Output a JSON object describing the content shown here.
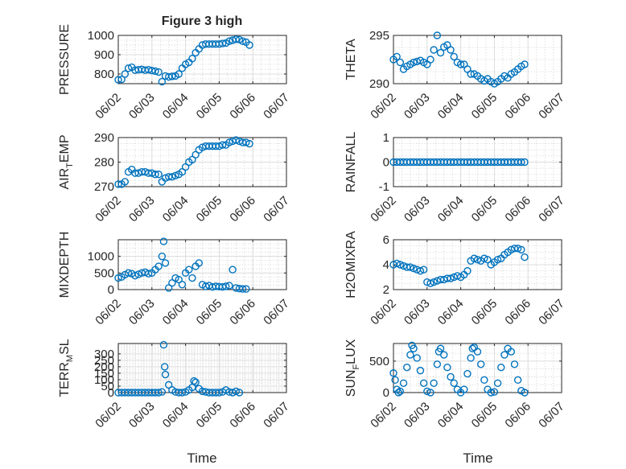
{
  "figure_title": "Figure 3 high",
  "colors": {
    "marker": "#0072BD",
    "axis": "#262626"
  },
  "x_ticks": [
    "06/02",
    "06/03",
    "06/04",
    "06/05",
    "06/06",
    "06/07"
  ],
  "xlabel": "Time",
  "chart_data": [
    {
      "type": "scatter",
      "ylabel": "PRESSURE",
      "title": "Figure 3 high",
      "ylim": [
        750,
        1000
      ],
      "yticks": [
        "800",
        "900",
        "1000"
      ],
      "ytick_values": [
        800,
        900,
        1000
      ],
      "xlim": [
        "06/02",
        "06/07"
      ],
      "x": [
        2.0,
        2.1,
        2.2,
        2.3,
        2.4,
        2.5,
        2.6,
        2.7,
        2.8,
        2.9,
        3.0,
        3.1,
        3.2,
        3.3,
        3.4,
        3.5,
        3.6,
        3.7,
        3.8,
        3.9,
        4.0,
        4.1,
        4.2,
        4.3,
        4.4,
        4.5,
        4.6,
        4.7,
        4.8,
        4.9,
        5.0,
        5.1,
        5.2,
        5.3,
        5.4,
        5.5,
        5.6,
        5.7,
        5.8,
        5.9
      ],
      "y": [
        770,
        772,
        800,
        830,
        835,
        820,
        822,
        824,
        820,
        822,
        818,
        815,
        810,
        760,
        790,
        785,
        788,
        790,
        800,
        830,
        850,
        860,
        880,
        910,
        930,
        950,
        955,
        955,
        955,
        955,
        955,
        958,
        960,
        970,
        975,
        980,
        978,
        970,
        965,
        950
      ]
    },
    {
      "type": "scatter",
      "ylabel": "THETA",
      "ylim": [
        290,
        295
      ],
      "yticks": [
        "290",
        "295"
      ],
      "ytick_values": [
        290,
        295
      ],
      "xlim": [
        "06/02",
        "06/07"
      ],
      "x": [
        2.0,
        2.1,
        2.2,
        2.3,
        2.4,
        2.5,
        2.6,
        2.7,
        2.8,
        2.9,
        3.0,
        3.1,
        3.2,
        3.3,
        3.4,
        3.5,
        3.6,
        3.7,
        3.8,
        3.9,
        4.0,
        4.1,
        4.2,
        4.3,
        4.4,
        4.5,
        4.6,
        4.7,
        4.8,
        4.9,
        5.0,
        5.1,
        5.2,
        5.3,
        5.4,
        5.5,
        5.6,
        5.7,
        5.8,
        5.9
      ],
      "y": [
        292.5,
        292.8,
        292.2,
        291.5,
        291.8,
        292.0,
        292.2,
        292.3,
        292.4,
        292.2,
        292.0,
        292.5,
        293.5,
        295.0,
        293.2,
        293.8,
        294.0,
        293.5,
        292.8,
        292.2,
        292.0,
        292.0,
        291.5,
        291.0,
        291.0,
        290.8,
        290.5,
        290.3,
        290.5,
        290.2,
        290.0,
        290.2,
        290.5,
        290.8,
        290.6,
        291.0,
        291.2,
        291.5,
        291.8,
        292.0
      ]
    },
    {
      "type": "scatter",
      "ylabel": "AIR_TEMP",
      "ylabel_parts": [
        "AIR",
        "T",
        "EMP"
      ],
      "ylim": [
        270,
        290
      ],
      "yticks": [
        "270",
        "280",
        "290"
      ],
      "ytick_values": [
        270,
        280,
        290
      ],
      "xlim": [
        "06/02",
        "06/07"
      ],
      "x": [
        2.0,
        2.1,
        2.2,
        2.3,
        2.4,
        2.5,
        2.6,
        2.7,
        2.8,
        2.9,
        3.0,
        3.1,
        3.2,
        3.3,
        3.4,
        3.5,
        3.6,
        3.7,
        3.8,
        3.9,
        4.0,
        4.1,
        4.2,
        4.3,
        4.4,
        4.5,
        4.6,
        4.7,
        4.8,
        4.9,
        5.0,
        5.1,
        5.2,
        5.3,
        5.4,
        5.5,
        5.6,
        5.7,
        5.8,
        5.9
      ],
      "y": [
        271,
        271,
        272,
        276,
        277,
        275.5,
        275.5,
        276,
        276,
        275.5,
        275.5,
        275,
        275,
        272,
        273.5,
        274,
        274,
        274.5,
        275,
        276,
        278,
        280,
        281,
        283,
        285,
        286,
        286.5,
        286.5,
        286.5,
        286.5,
        286.5,
        287,
        287,
        288,
        288.5,
        289,
        288.5,
        288,
        288,
        287.5
      ]
    },
    {
      "type": "scatter",
      "ylabel": "RAINFALL",
      "ylim": [
        -1,
        1
      ],
      "yticks": [
        "-1",
        "0",
        "1"
      ],
      "ytick_values": [
        -1,
        0,
        1
      ],
      "xlim": [
        "06/02",
        "06/07"
      ],
      "x": [
        2.0,
        2.1,
        2.2,
        2.3,
        2.4,
        2.5,
        2.6,
        2.7,
        2.8,
        2.9,
        3.0,
        3.1,
        3.2,
        3.3,
        3.4,
        3.5,
        3.6,
        3.7,
        3.8,
        3.9,
        4.0,
        4.1,
        4.2,
        4.3,
        4.4,
        4.5,
        4.6,
        4.7,
        4.8,
        4.9,
        5.0,
        5.1,
        5.2,
        5.3,
        5.4,
        5.5,
        5.6,
        5.7,
        5.8,
        5.9
      ],
      "y": [
        0,
        0,
        0,
        0,
        0,
        0,
        0,
        0,
        0,
        0,
        0,
        0,
        0,
        0,
        0,
        0,
        0,
        0,
        0,
        0,
        0,
        0,
        0,
        0,
        0,
        0,
        0,
        0,
        0,
        0,
        0,
        0,
        0,
        0,
        0,
        0,
        0,
        0,
        0,
        0
      ]
    },
    {
      "type": "scatter",
      "ylabel": "MIXDEPTH",
      "ylim": [
        0,
        1500
      ],
      "yticks": [
        "0",
        "500",
        "1000"
      ],
      "ytick_values": [
        0,
        500,
        1000
      ],
      "xlim": [
        "06/02",
        "06/07"
      ],
      "x": [
        2.0,
        2.1,
        2.2,
        2.3,
        2.4,
        2.5,
        2.6,
        2.7,
        2.8,
        2.9,
        3.0,
        3.1,
        3.2,
        3.3,
        3.35,
        3.4,
        3.5,
        3.6,
        3.7,
        3.8,
        3.9,
        4.0,
        4.1,
        4.2,
        4.3,
        4.4,
        4.5,
        4.6,
        4.7,
        4.8,
        4.9,
        5.0,
        5.1,
        5.2,
        5.3,
        5.4,
        5.5,
        5.6,
        5.7,
        5.8
      ],
      "y": [
        350,
        380,
        450,
        500,
        480,
        420,
        460,
        500,
        520,
        480,
        500,
        600,
        700,
        1000,
        1450,
        800,
        50,
        200,
        350,
        300,
        150,
        500,
        600,
        350,
        700,
        800,
        150,
        100,
        120,
        80,
        100,
        90,
        80,
        100,
        120,
        600,
        50,
        30,
        20,
        20
      ]
    },
    {
      "type": "scatter",
      "ylabel": "H2OMIXRA",
      "ylim": [
        2,
        6
      ],
      "yticks": [
        "2",
        "4",
        "6"
      ],
      "ytick_values": [
        2,
        4,
        6
      ],
      "xlim": [
        "06/02",
        "06/07"
      ],
      "x": [
        2.0,
        2.1,
        2.2,
        2.3,
        2.4,
        2.5,
        2.6,
        2.7,
        2.8,
        2.9,
        3.0,
        3.1,
        3.2,
        3.3,
        3.4,
        3.5,
        3.6,
        3.7,
        3.8,
        3.9,
        4.0,
        4.1,
        4.2,
        4.3,
        4.4,
        4.5,
        4.6,
        4.7,
        4.8,
        4.9,
        5.0,
        5.1,
        5.2,
        5.3,
        5.4,
        5.5,
        5.6,
        5.7,
        5.8,
        5.9
      ],
      "y": [
        4.0,
        4.1,
        4.0,
        3.9,
        3.8,
        3.8,
        3.7,
        3.6,
        3.5,
        3.6,
        2.6,
        2.5,
        2.6,
        2.7,
        2.8,
        2.8,
        2.9,
        2.9,
        3.0,
        3.1,
        3.0,
        3.2,
        3.5,
        4.3,
        4.5,
        4.4,
        4.3,
        4.5,
        4.4,
        4.0,
        4.2,
        4.4,
        4.5,
        4.8,
        5.0,
        5.2,
        5.3,
        5.3,
        5.2,
        4.6
      ]
    },
    {
      "type": "scatter",
      "ylabel": "TERR_MSL",
      "ylabel_parts": [
        "TERR",
        "M",
        "SL"
      ],
      "ylim": [
        0,
        380
      ],
      "yticks": [
        "0",
        "50",
        "100",
        "150",
        "200",
        "250",
        "300"
      ],
      "ytick_values": [
        0,
        50,
        100,
        150,
        200,
        250,
        300
      ],
      "xlim": [
        "06/02",
        "06/07"
      ],
      "x": [
        2.0,
        2.1,
        2.2,
        2.3,
        2.4,
        2.5,
        2.6,
        2.7,
        2.8,
        2.9,
        3.0,
        3.1,
        3.2,
        3.3,
        3.35,
        3.38,
        3.4,
        3.5,
        3.6,
        3.7,
        3.8,
        3.9,
        4.0,
        4.1,
        4.2,
        4.25,
        4.3,
        4.4,
        4.5,
        4.6,
        4.7,
        4.8,
        4.9,
        5.0,
        5.1,
        5.2,
        5.3,
        5.4,
        5.5,
        5.6
      ],
      "y": [
        0,
        0,
        0,
        0,
        0,
        0,
        0,
        0,
        0,
        0,
        0,
        0,
        0,
        5,
        370,
        200,
        140,
        60,
        20,
        5,
        0,
        0,
        5,
        20,
        40,
        90,
        80,
        30,
        10,
        5,
        0,
        0,
        0,
        0,
        5,
        20,
        5,
        0,
        10,
        0
      ]
    },
    {
      "type": "scatter",
      "ylabel": "SUN_FLUX",
      "ylabel_parts": [
        "SUN",
        "F",
        "LUX"
      ],
      "ylim": [
        0,
        780
      ],
      "yticks": [
        "0",
        "500"
      ],
      "ytick_values": [
        0,
        500
      ],
      "xlim": [
        "06/02",
        "06/07"
      ],
      "x": [
        2.0,
        2.05,
        2.1,
        2.15,
        2.2,
        2.3,
        2.4,
        2.5,
        2.55,
        2.6,
        2.7,
        2.8,
        2.9,
        3.0,
        3.1,
        3.2,
        3.3,
        3.35,
        3.4,
        3.5,
        3.6,
        3.7,
        3.8,
        3.9,
        4.0,
        4.1,
        4.2,
        4.3,
        4.35,
        4.4,
        4.5,
        4.6,
        4.7,
        4.8,
        4.9,
        5.0,
        5.1,
        5.2,
        5.3,
        5.4,
        5.5,
        5.6,
        5.7,
        5.8,
        5.9
      ],
      "y": [
        310,
        200,
        50,
        0,
        20,
        150,
        400,
        600,
        750,
        700,
        550,
        350,
        150,
        20,
        0,
        150,
        450,
        650,
        700,
        600,
        400,
        250,
        150,
        50,
        0,
        50,
        300,
        550,
        700,
        720,
        650,
        450,
        200,
        50,
        0,
        10,
        150,
        400,
        600,
        700,
        650,
        450,
        200,
        30,
        0
      ]
    }
  ]
}
